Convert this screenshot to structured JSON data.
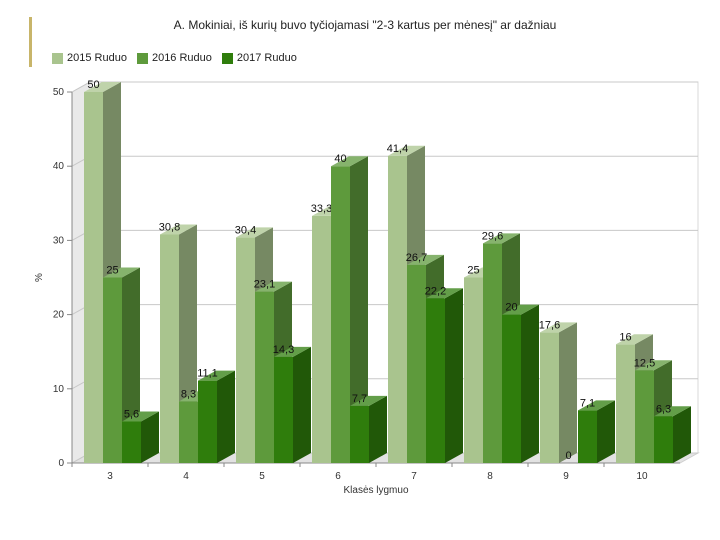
{
  "chart_data": {
    "type": "bar",
    "title": "A. Mokiniai, iš kurių buvo tyčiojamasi \"2-3 kartus per mėnesį\" ar dažniau",
    "xlabel": "Klasės lygmuo",
    "ylabel": "%",
    "categories": [
      "3",
      "4",
      "5",
      "6",
      "7",
      "8",
      "9",
      "10"
    ],
    "ylim": [
      0,
      50
    ],
    "yticks": [
      0,
      10,
      20,
      30,
      40,
      50
    ],
    "grid": true,
    "legend_position": "top-left",
    "series": [
      {
        "name": "2015 Ruduo",
        "color": "#a9c48e",
        "values": [
          50,
          30.8,
          30.4,
          33.3,
          41.4,
          25,
          17.6,
          16
        ],
        "labels": [
          "50",
          "30,8",
          "30,4",
          "33,3",
          "41,4",
          "25",
          "17,6",
          "16"
        ]
      },
      {
        "name": "2016 Ruduo",
        "color": "#5e9a3c",
        "values": [
          25,
          8.3,
          23.1,
          40,
          26.7,
          29.6,
          0,
          12.5
        ],
        "labels": [
          "25",
          "8,3",
          "23,1",
          "40",
          "26,7",
          "29,6",
          "0",
          "12,5"
        ]
      },
      {
        "name": "2017 Ruduo",
        "color": "#2f7d0c",
        "values": [
          5.6,
          11.1,
          14.3,
          7.7,
          22.2,
          20,
          7.1,
          6.3
        ],
        "labels": [
          "5,6",
          "11,1",
          "14,3",
          "7,7",
          "22,2",
          "20",
          "7,1",
          "6,3"
        ]
      }
    ]
  }
}
